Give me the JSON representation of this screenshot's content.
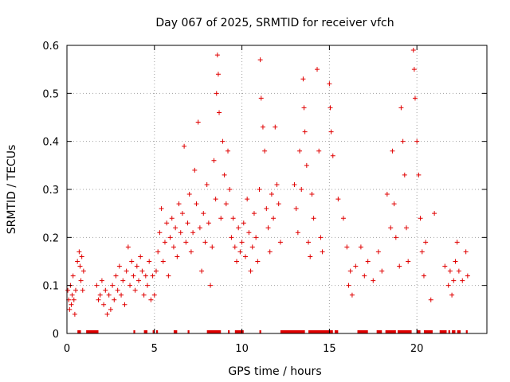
{
  "chart_data": {
    "type": "scatter",
    "title": "Day 067 of 2025, SRMTID for receiver vfch",
    "xlabel": "GPS time / hours",
    "ylabel": "SRMTID / TECUs",
    "xlim": [
      0,
      24
    ],
    "ylim": [
      0,
      0.6
    ],
    "xticks": [
      "0",
      "5",
      "10",
      "15",
      "20"
    ],
    "xtick_values": [
      0,
      5,
      10,
      15,
      20
    ],
    "yticks": [
      "0",
      "0.1",
      "0.2",
      "0.3",
      "0.4",
      "0.5",
      "0.6"
    ],
    "ytick_values": [
      0,
      0.1,
      0.2,
      0.3,
      0.4,
      0.5,
      0.6
    ],
    "grid": true,
    "marker": "+",
    "color": "#e00000",
    "series": [
      {
        "name": "SRMTID",
        "points": [
          [
            0.05,
            0.09
          ],
          [
            0.1,
            0.07
          ],
          [
            0.15,
            0.05
          ],
          [
            0.2,
            0.1
          ],
          [
            0.25,
            0.06
          ],
          [
            0.3,
            0.08
          ],
          [
            0.35,
            0.12
          ],
          [
            0.4,
            0.07
          ],
          [
            0.45,
            0.04
          ],
          [
            0.5,
            0.09
          ],
          [
            0.6,
            0.15
          ],
          [
            0.7,
            0.17
          ],
          [
            0.75,
            0.14
          ],
          [
            0.8,
            0.11
          ],
          [
            0.85,
            0.16
          ],
          [
            0.9,
            0.09
          ],
          [
            0.95,
            0.13
          ],
          [
            1.7,
            0.1
          ],
          [
            1.8,
            0.07
          ],
          [
            1.9,
            0.08
          ],
          [
            2.0,
            0.11
          ],
          [
            2.1,
            0.06
          ],
          [
            2.2,
            0.09
          ],
          [
            2.3,
            0.04
          ],
          [
            2.4,
            0.08
          ],
          [
            2.5,
            0.05
          ],
          [
            2.6,
            0.1
          ],
          [
            2.7,
            0.07
          ],
          [
            2.8,
            0.12
          ],
          [
            2.9,
            0.09
          ],
          [
            3.0,
            0.14
          ],
          [
            3.1,
            0.08
          ],
          [
            3.2,
            0.11
          ],
          [
            3.3,
            0.06
          ],
          [
            3.4,
            0.13
          ],
          [
            3.5,
            0.18
          ],
          [
            3.6,
            0.1
          ],
          [
            3.7,
            0.15
          ],
          [
            3.8,
            0.12
          ],
          [
            3.9,
            0.09
          ],
          [
            4.0,
            0.14
          ],
          [
            4.1,
            0.11
          ],
          [
            4.2,
            0.16
          ],
          [
            4.3,
            0.13
          ],
          [
            4.4,
            0.08
          ],
          [
            4.5,
            0.12
          ],
          [
            4.6,
            0.1
          ],
          [
            4.7,
            0.15
          ],
          [
            4.8,
            0.07
          ],
          [
            4.9,
            0.12
          ],
          [
            5.0,
            0.08
          ],
          [
            5.1,
            0.13
          ],
          [
            5.2,
            0.17
          ],
          [
            5.3,
            0.21
          ],
          [
            5.4,
            0.26
          ],
          [
            5.5,
            0.15
          ],
          [
            5.6,
            0.19
          ],
          [
            5.7,
            0.23
          ],
          [
            5.8,
            0.12
          ],
          [
            5.9,
            0.2
          ],
          [
            6.0,
            0.24
          ],
          [
            6.1,
            0.18
          ],
          [
            6.2,
            0.22
          ],
          [
            6.3,
            0.16
          ],
          [
            6.4,
            0.27
          ],
          [
            6.5,
            0.21
          ],
          [
            6.6,
            0.25
          ],
          [
            6.7,
            0.39
          ],
          [
            6.8,
            0.19
          ],
          [
            6.9,
            0.23
          ],
          [
            7.0,
            0.29
          ],
          [
            7.1,
            0.17
          ],
          [
            7.2,
            0.21
          ],
          [
            7.3,
            0.34
          ],
          [
            7.4,
            0.27
          ],
          [
            7.5,
            0.44
          ],
          [
            7.6,
            0.22
          ],
          [
            7.7,
            0.13
          ],
          [
            7.8,
            0.25
          ],
          [
            7.9,
            0.19
          ],
          [
            8.0,
            0.31
          ],
          [
            8.1,
            0.23
          ],
          [
            8.2,
            0.1
          ],
          [
            8.3,
            0.18
          ],
          [
            8.4,
            0.36
          ],
          [
            8.5,
            0.28
          ],
          [
            8.55,
            0.5
          ],
          [
            8.6,
            0.58
          ],
          [
            8.65,
            0.54
          ],
          [
            8.7,
            0.46
          ],
          [
            8.8,
            0.24
          ],
          [
            8.9,
            0.4
          ],
          [
            9.0,
            0.33
          ],
          [
            9.1,
            0.27
          ],
          [
            9.2,
            0.38
          ],
          [
            9.3,
            0.3
          ],
          [
            9.4,
            0.2
          ],
          [
            9.5,
            0.24
          ],
          [
            9.6,
            0.18
          ],
          [
            9.7,
            0.15
          ],
          [
            9.8,
            0.22
          ],
          [
            9.9,
            0.17
          ],
          [
            10.0,
            0.19
          ],
          [
            10.1,
            0.23
          ],
          [
            10.2,
            0.16
          ],
          [
            10.3,
            0.28
          ],
          [
            10.4,
            0.21
          ],
          [
            10.5,
            0.13
          ],
          [
            10.6,
            0.18
          ],
          [
            10.7,
            0.25
          ],
          [
            10.8,
            0.2
          ],
          [
            10.9,
            0.15
          ],
          [
            11.0,
            0.3
          ],
          [
            11.05,
            0.57
          ],
          [
            11.1,
            0.49
          ],
          [
            11.2,
            0.43
          ],
          [
            11.3,
            0.38
          ],
          [
            11.4,
            0.26
          ],
          [
            11.5,
            0.22
          ],
          [
            11.6,
            0.17
          ],
          [
            11.7,
            0.29
          ],
          [
            11.8,
            0.24
          ],
          [
            11.9,
            0.43
          ],
          [
            12.0,
            0.31
          ],
          [
            12.1,
            0.27
          ],
          [
            12.2,
            0.19
          ],
          [
            13.0,
            0.31
          ],
          [
            13.1,
            0.26
          ],
          [
            13.2,
            0.21
          ],
          [
            13.3,
            0.38
          ],
          [
            13.4,
            0.3
          ],
          [
            13.5,
            0.53
          ],
          [
            13.55,
            0.47
          ],
          [
            13.6,
            0.42
          ],
          [
            13.7,
            0.35
          ],
          [
            13.8,
            0.19
          ],
          [
            13.9,
            0.16
          ],
          [
            14.0,
            0.29
          ],
          [
            14.1,
            0.24
          ],
          [
            14.3,
            0.55
          ],
          [
            14.4,
            0.38
          ],
          [
            14.5,
            0.2
          ],
          [
            14.6,
            0.17
          ],
          [
            15.0,
            0.52
          ],
          [
            15.05,
            0.47
          ],
          [
            15.1,
            0.42
          ],
          [
            15.2,
            0.37
          ],
          [
            15.5,
            0.28
          ],
          [
            15.8,
            0.24
          ],
          [
            16.0,
            0.18
          ],
          [
            16.1,
            0.1
          ],
          [
            16.2,
            0.13
          ],
          [
            16.3,
            0.08
          ],
          [
            16.5,
            0.14
          ],
          [
            16.8,
            0.18
          ],
          [
            17.0,
            0.12
          ],
          [
            17.2,
            0.15
          ],
          [
            17.5,
            0.11
          ],
          [
            17.8,
            0.17
          ],
          [
            18.0,
            0.13
          ],
          [
            18.3,
            0.29
          ],
          [
            18.5,
            0.22
          ],
          [
            18.6,
            0.38
          ],
          [
            18.7,
            0.27
          ],
          [
            18.8,
            0.2
          ],
          [
            19.0,
            0.14
          ],
          [
            19.1,
            0.47
          ],
          [
            19.2,
            0.4
          ],
          [
            19.3,
            0.33
          ],
          [
            19.4,
            0.22
          ],
          [
            19.5,
            0.15
          ],
          [
            19.8,
            0.59
          ],
          [
            19.85,
            0.55
          ],
          [
            19.9,
            0.49
          ],
          [
            20.0,
            0.4
          ],
          [
            20.1,
            0.33
          ],
          [
            20.2,
            0.24
          ],
          [
            20.3,
            0.17
          ],
          [
            20.4,
            0.12
          ],
          [
            20.5,
            0.19
          ],
          [
            20.8,
            0.07
          ],
          [
            21.0,
            0.25
          ],
          [
            21.6,
            0.14
          ],
          [
            21.8,
            0.1
          ],
          [
            21.9,
            0.13
          ],
          [
            22.0,
            0.08
          ],
          [
            22.1,
            0.11
          ],
          [
            22.2,
            0.15
          ],
          [
            22.3,
            0.19
          ],
          [
            22.4,
            0.13
          ],
          [
            22.6,
            0.11
          ],
          [
            22.8,
            0.17
          ],
          [
            22.9,
            0.12
          ]
        ],
        "zero_ranges": [
          [
            0.6,
            0.8
          ],
          [
            1.1,
            1.8
          ],
          [
            3.8,
            3.9
          ],
          [
            4.4,
            4.6
          ],
          [
            4.9,
            5.0
          ],
          [
            5.1,
            5.2
          ],
          [
            6.1,
            6.3
          ],
          [
            6.9,
            7.0
          ],
          [
            8.0,
            8.8
          ],
          [
            9.2,
            9.3
          ],
          [
            9.6,
            10.1
          ],
          [
            11.0,
            11.1
          ],
          [
            12.2,
            13.6
          ],
          [
            13.8,
            15.2
          ],
          [
            15.3,
            15.5
          ],
          [
            16.6,
            17.2
          ],
          [
            17.7,
            18.0
          ],
          [
            18.2,
            18.8
          ],
          [
            18.9,
            19.7
          ],
          [
            20.0,
            20.2
          ],
          [
            20.4,
            20.9
          ],
          [
            21.3,
            21.7
          ],
          [
            21.8,
            21.9
          ],
          [
            22.0,
            22.2
          ],
          [
            22.3,
            22.5
          ],
          [
            22.8,
            22.9
          ]
        ]
      }
    ]
  }
}
